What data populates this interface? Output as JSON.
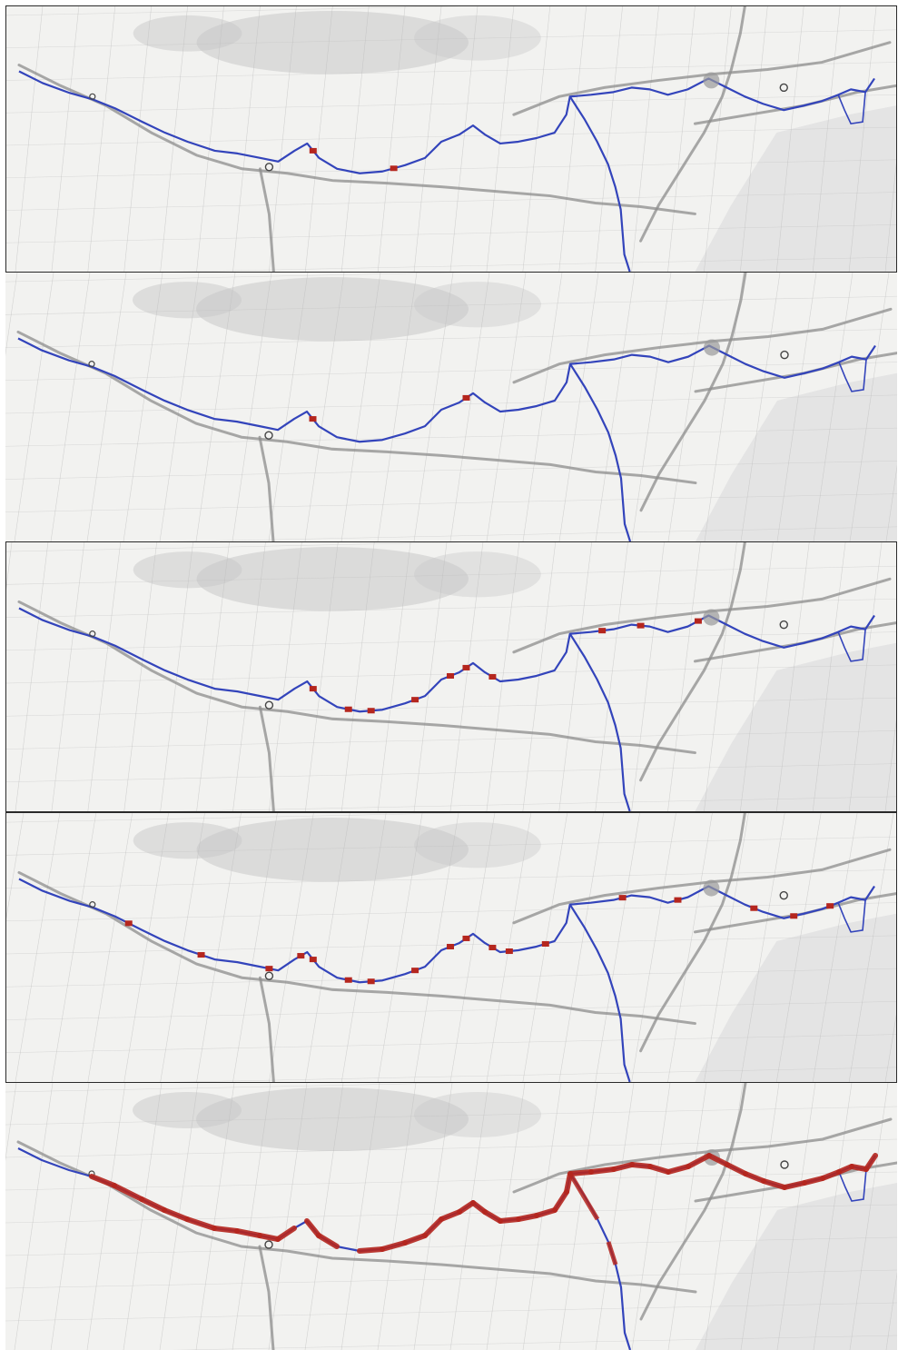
{
  "figure": {
    "panel_count": 5,
    "panels": [
      {
        "id": 1,
        "highlight_density": "sparse"
      },
      {
        "id": 2,
        "highlight_density": "sparse"
      },
      {
        "id": 3,
        "highlight_density": "moderate"
      },
      {
        "id": 4,
        "highlight_density": "dense"
      },
      {
        "id": 5,
        "highlight_density": "very-dense"
      }
    ]
  },
  "colors": {
    "background": "#f2f2f0",
    "terrain_shade": "#c8c8c8",
    "roads": "#8c8c8c",
    "minor_roads": "#bdbdbd",
    "river_route": "#3344bb",
    "highlight_segments": "#b5261e",
    "sea": "#e4e4e4",
    "frame": "#2a2a2a"
  },
  "icons": [
    "city-marker-icon",
    "town-marker-icon"
  ]
}
